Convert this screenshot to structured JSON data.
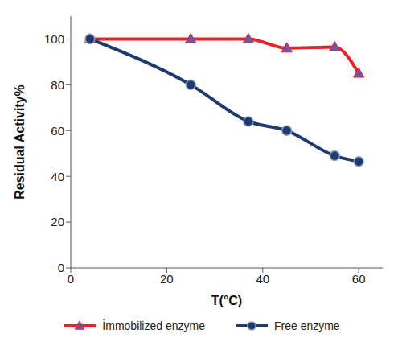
{
  "chart_data": {
    "type": "line",
    "x_label": "T(°C)",
    "y_label": "Residual Activity%",
    "x": [
      4,
      25,
      37,
      45,
      55,
      60
    ],
    "series": [
      {
        "name": "İmmobilized enzyme",
        "color": "#e8232a",
        "marker": "triangle",
        "values": [
          100,
          100,
          100,
          96,
          96.5,
          85
        ]
      },
      {
        "name": "Free enzyme",
        "color": "#1f3a6e",
        "marker": "circle",
        "values": [
          100,
          80,
          64,
          60,
          49,
          46.5
        ]
      }
    ],
    "xlim": [
      0,
      65
    ],
    "xticks": [
      0,
      20,
      40,
      60
    ],
    "ylim": [
      0,
      110
    ],
    "yticks": [
      0,
      20,
      40,
      60,
      80,
      100
    ],
    "grid": false,
    "legend": "bottom"
  }
}
